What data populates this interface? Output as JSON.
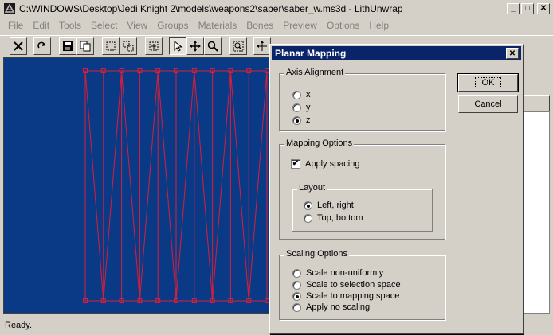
{
  "window": {
    "title": "C:\\WINDOWS\\Desktop\\Jedi Knight 2\\models\\weapons2\\saber\\saber_w.ms3d - LithUnwrap",
    "minimize_label": "_",
    "maximize_label": "□",
    "close_label": "✕"
  },
  "menu": [
    "File",
    "Edit",
    "Tools",
    "Select",
    "View",
    "Groups",
    "Materials",
    "Bones",
    "Preview",
    "Options",
    "Help"
  ],
  "status": {
    "text": "Ready."
  },
  "dialog": {
    "title": "Planar Mapping",
    "close_label": "✕",
    "ok_label": "OK",
    "cancel_label": "Cancel",
    "axis_group": {
      "label": "Axis Alignment",
      "options": [
        "x",
        "y",
        "z"
      ],
      "selected": "z"
    },
    "mapping_group": {
      "label": "Mapping Options",
      "apply_spacing_label": "Apply spacing",
      "apply_spacing_checked": true,
      "checkmark": "✔",
      "layout_group": {
        "label": "Layout",
        "options": [
          "Left, right",
          "Top, bottom"
        ],
        "selected": "Left, right"
      }
    },
    "scaling_group": {
      "label": "Scaling Options",
      "options": [
        "Scale non-uniformly",
        "Scale to selection space",
        "Scale to mapping space",
        "Apply no scaling"
      ],
      "selected": "Scale to mapping space"
    }
  },
  "toolbar": {
    "icons": [
      "delete-icon",
      "redo-icon",
      "save-icon",
      "copy-icon",
      "rect-select-icon",
      "multi-select-icon",
      "center-icon",
      "pointer-icon",
      "move-icon",
      "zoom-icon",
      "zoom-fit-icon",
      "pan-icon",
      "rotate-icon",
      "scale-icon",
      "scissors-icon"
    ]
  },
  "colors": {
    "viewport_bg": "#0a3a85",
    "mesh_line": "#d81e3a",
    "dialog_title_bg": "#0a246a"
  }
}
